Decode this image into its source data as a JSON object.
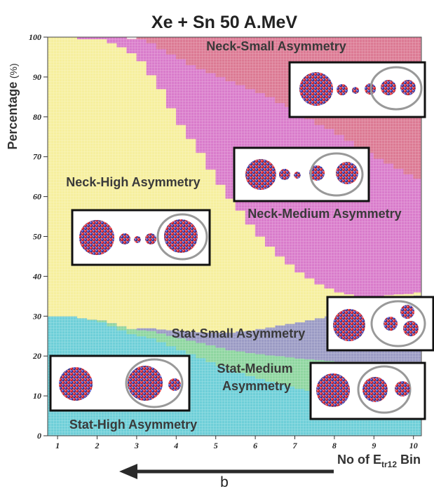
{
  "chart_data": {
    "type": "area",
    "stacked": true,
    "title": "Xe + Sn 50 A.MeV",
    "ylabel": "Percentage",
    "ylabel_unit": "(%)",
    "xlabel": "No of E",
    "xlabel_sub": "tr12",
    "xlabel_suffix": " Bin",
    "bottom_label": "b",
    "ylim": [
      0,
      100
    ],
    "y_ticks": [
      0,
      10,
      20,
      30,
      40,
      50,
      60,
      70,
      80,
      90,
      100
    ],
    "x_ticks": [
      1,
      2,
      3,
      4,
      5,
      6,
      7,
      8,
      9,
      10
    ],
    "xlim": [
      0.75,
      10.2
    ],
    "x": [
      0.75,
      1.0,
      1.25,
      1.5,
      1.75,
      2.0,
      2.25,
      2.5,
      2.75,
      3.0,
      3.25,
      3.5,
      3.75,
      4.0,
      4.25,
      4.5,
      4.75,
      5.0,
      5.25,
      5.5,
      5.75,
      6.0,
      6.25,
      6.5,
      6.75,
      7.0,
      7.25,
      7.5,
      7.75,
      8.0,
      8.25,
      8.5,
      8.75,
      9.0,
      9.25,
      9.5,
      9.75,
      10.0,
      10.2
    ],
    "series": [
      {
        "name": "Stat-High Asymmetry",
        "color": "#6ecfd8",
        "values": [
          30,
          30,
          30,
          29.5,
          29,
          28.5,
          27.5,
          26.5,
          25.5,
          25,
          24.5,
          23.5,
          22.5,
          21.5,
          20.5,
          19.5,
          18.5,
          17.5,
          16.5,
          15.8,
          15,
          14.3,
          13.6,
          13,
          12.4,
          11.8,
          11.3,
          10.8,
          10.3,
          9.8,
          9.4,
          9,
          8.6,
          8.2,
          7.9,
          7.6,
          7.3,
          7,
          6.8
        ]
      },
      {
        "name": "Stat-Medium Asymmetry",
        "color": "#8fd6a0",
        "values": [
          0,
          0,
          0,
          0,
          0.2,
          0.5,
          0.8,
          1,
          1.3,
          1.5,
          1.8,
          2.2,
          2.6,
          3,
          3.4,
          3.8,
          4.2,
          4.6,
          5,
          5.4,
          5.8,
          6.2,
          6.6,
          7,
          7.3,
          7.6,
          7.9,
          8.2,
          8.5,
          8.8,
          9,
          9.2,
          9.4,
          9.6,
          9.8,
          10,
          10.1,
          10.2,
          10.3
        ]
      },
      {
        "name": "Stat-Small Asymmetry",
        "color": "#9b9bc4",
        "values": [
          0,
          0,
          0,
          0,
          0,
          0,
          0,
          0,
          0,
          0.5,
          0.7,
          1,
          1.4,
          1.8,
          2.2,
          2.7,
          3.2,
          3.8,
          4.4,
          5,
          5.6,
          6.3,
          7,
          7.7,
          8.4,
          9.1,
          9.8,
          10.5,
          11.2,
          11.9,
          12.6,
          13.3,
          14,
          14.8,
          15.6,
          16.4,
          17.2,
          18,
          18.5
        ]
      },
      {
        "name": "Neck-High Asymmetry",
        "color": "#f6ef9e",
        "values": [
          70,
          70,
          70,
          70,
          70.3,
          70.5,
          70.2,
          70,
          69.2,
          67,
          63.5,
          60.3,
          55.7,
          51.7,
          48.4,
          45,
          40.9,
          37.1,
          33.6,
          30.3,
          26.6,
          23.2,
          20.3,
          17.3,
          14.9,
          12.5,
          10.5,
          8.5,
          7,
          5.5,
          4.5,
          3.5,
          3,
          2.4,
          2,
          1.5,
          1,
          0.8,
          0.4
        ]
      },
      {
        "name": "Neck-Medium Asymmetry",
        "color": "#d97ccb",
        "values": [
          0,
          0,
          0,
          0.5,
          0.5,
          0.5,
          1.5,
          2.5,
          3.5,
          5.5,
          8,
          10,
          13.5,
          16.5,
          18.5,
          21,
          24.2,
          27,
          29.5,
          31.5,
          34,
          36,
          37.5,
          38.5,
          39.5,
          40,
          40,
          40,
          40,
          39.5,
          38.5,
          37.5,
          36,
          34.5,
          33,
          31.5,
          30,
          28.5,
          28
        ]
      },
      {
        "name": "Neck-Small Asymmetry",
        "color": "#dc7a94",
        "values": [
          0,
          0,
          0,
          0,
          0,
          0,
          0,
          0,
          0,
          0.5,
          1.5,
          3,
          4.3,
          5.5,
          7,
          8,
          9,
          10,
          11,
          12,
          13,
          14,
          15,
          16.5,
          17.5,
          19,
          20.5,
          22,
          23,
          24.5,
          26,
          27.5,
          29,
          30.5,
          31.7,
          33,
          34.4,
          35.5,
          36
        ]
      }
    ],
    "annotations": [
      {
        "name": "Neck-Small Asymmetry",
        "text": "Neck-Small Asymmetry"
      },
      {
        "name": "Neck-High Asymmetry",
        "text": "Neck-High Asymmetry"
      },
      {
        "name": "Neck-Medium Asymmetry",
        "text": "Neck-Medium Asymmetry"
      },
      {
        "name": "Stat-Small Asymmetry",
        "text": "Stat-Small Asymmetry"
      },
      {
        "name": "Stat-Medium Asymmetry",
        "text": "Stat-Medium Asymmetry"
      },
      {
        "name": "Stat-High Asymmetry",
        "text": "Stat-High Asymmetry"
      }
    ],
    "grid": false,
    "legend": "none"
  }
}
